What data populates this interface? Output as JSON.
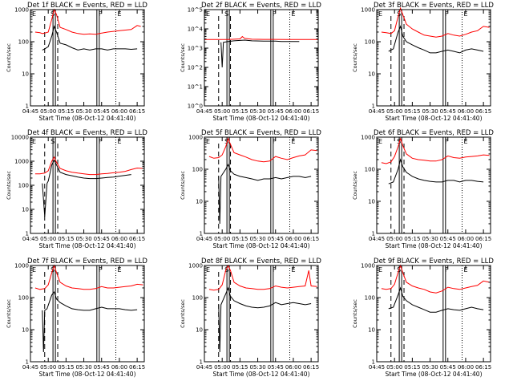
{
  "figure": {
    "background": "#ffffff",
    "events_color": "#000000",
    "lld_color": "#ff0000"
  },
  "chart_data": [
    {
      "type": "line",
      "title": "Det 1f BLACK = Events, RED = LLD",
      "xlabel": "Start Time (08-Oct-12 04:41:40)",
      "ylabel": "Counts/sec",
      "x_ticks": [
        "04:45",
        "05:00",
        "05:15",
        "05:30",
        "05:45",
        "06:00",
        "06:15"
      ],
      "y_ticks": [
        "1",
        "10",
        "100",
        "1000"
      ],
      "ylim": [
        1,
        1000
      ],
      "markers": [
        "E",
        "S",
        "F",
        "E"
      ],
      "series": [
        {
          "name": "LLD",
          "x": [
            4,
            8,
            10,
            12,
            15,
            18,
            20,
            22,
            25,
            30,
            35,
            40,
            45,
            50,
            55,
            60,
            65,
            70,
            75,
            80,
            85,
            90,
            93
          ],
          "y": [
            200,
            190,
            180,
            185,
            200,
            500,
            1000,
            700,
            280,
            240,
            200,
            180,
            170,
            175,
            170,
            185,
            200,
            210,
            220,
            230,
            240,
            320,
            300
          ]
        },
        {
          "name": "Events",
          "x": [
            10,
            12,
            15,
            18,
            20,
            22,
            25,
            30,
            35,
            40,
            45,
            50,
            55,
            60,
            65,
            70,
            75,
            80,
            85,
            90
          ],
          "y": [
            55,
            60,
            70,
            150,
            300,
            200,
            90,
            80,
            65,
            55,
            60,
            55,
            60,
            60,
            55,
            60,
            60,
            60,
            58,
            60
          ]
        }
      ]
    },
    {
      "type": "line",
      "title": "Det 2f BLACK = Events, RED = LLD",
      "xlabel": "Start Time (08-Oct-12 04:41:40)",
      "ylabel": "Counts/sec",
      "x_ticks": [
        "04:45",
        "05:00",
        "05:15",
        "05:30",
        "05:45",
        "06:00",
        "06:15"
      ],
      "y_ticks": [
        "10^0",
        "10^1",
        "10^2",
        "10^3",
        "10^4",
        "10^5"
      ],
      "ylim": [
        1,
        100000
      ],
      "markers": [
        "E",
        "S",
        "F",
        "E"
      ],
      "series": [
        {
          "name": "LLD",
          "x": [
            0,
            10,
            20,
            30,
            32,
            34,
            40,
            50,
            60,
            70,
            80,
            90,
            96
          ],
          "y": [
            2800,
            2800,
            2800,
            3000,
            4000,
            3200,
            2900,
            2850,
            2850,
            2800,
            2800,
            2800,
            2800
          ]
        },
        {
          "name": "Events",
          "x": [
            14,
            15,
            16,
            20,
            25,
            30,
            34,
            40,
            50,
            60,
            65,
            70,
            75,
            80
          ],
          "y": [
            2000,
            100,
            2000,
            2200,
            2400,
            2500,
            2600,
            2400,
            2300,
            2300,
            2200,
            2200,
            2200,
            2200
          ]
        }
      ]
    },
    {
      "type": "line",
      "title": "Det 3f BLACK = Events, RED = LLD",
      "xlabel": "Start Time (08-Oct-12 04:41:40)",
      "ylabel": "Counts/sec",
      "x_ticks": [
        "04:45",
        "05:00",
        "05:15",
        "05:30",
        "05:45",
        "06:00",
        "06:15"
      ],
      "y_ticks": [
        "1",
        "10",
        "100",
        "1000"
      ],
      "ylim": [
        1,
        1000
      ],
      "markers": [
        "E",
        "S",
        "F",
        "E"
      ],
      "series": [
        {
          "name": "LLD",
          "x": [
            4,
            8,
            12,
            15,
            18,
            20,
            22,
            25,
            30,
            35,
            40,
            45,
            50,
            55,
            60,
            65,
            70,
            75,
            80,
            85,
            90,
            95
          ],
          "y": [
            200,
            190,
            180,
            220,
            600,
            1100,
            700,
            350,
            250,
            200,
            160,
            150,
            140,
            150,
            180,
            160,
            150,
            170,
            200,
            220,
            300,
            280
          ]
        },
        {
          "name": "Events",
          "x": [
            10,
            14,
            18,
            20,
            22,
            25,
            30,
            35,
            40,
            45,
            50,
            55,
            60,
            65,
            70,
            75,
            80,
            85,
            90
          ],
          "y": [
            50,
            60,
            200,
            300,
            150,
            100,
            80,
            65,
            55,
            45,
            45,
            50,
            55,
            50,
            45,
            55,
            60,
            55,
            50
          ]
        }
      ]
    },
    {
      "type": "line",
      "title": "Det 4f BLACK = Events, RED = LLD",
      "xlabel": "Start Time (08-Oct-12 04:41:40)",
      "ylabel": "Counts/sec",
      "x_ticks": [
        "04:45",
        "05:00",
        "05:15",
        "05:30",
        "05:45",
        "06:00",
        "06:15"
      ],
      "y_ticks": [
        "1",
        "10",
        "100",
        "1000",
        "10000"
      ],
      "ylim": [
        1,
        10000
      ],
      "markers": [
        "E",
        "S",
        "F",
        "E"
      ],
      "series": [
        {
          "name": "LLD",
          "x": [
            4,
            8,
            12,
            15,
            18,
            20,
            22,
            25,
            30,
            35,
            40,
            45,
            50,
            55,
            60,
            65,
            70,
            75,
            80,
            85,
            90,
            95
          ],
          "y": [
            300,
            300,
            320,
            400,
            1000,
            1500,
            900,
            500,
            400,
            350,
            320,
            300,
            280,
            280,
            300,
            310,
            330,
            350,
            380,
            450,
            520,
            500
          ]
        },
        {
          "name": "Events",
          "x": [
            10,
            12,
            14,
            15,
            16,
            18,
            20,
            22,
            25,
            30,
            35,
            40,
            45,
            50,
            55,
            60,
            65,
            70,
            75,
            80,
            85
          ],
          "y": [
            120,
            5,
            120,
            150,
            250,
            700,
            1100,
            700,
            350,
            280,
            250,
            220,
            200,
            190,
            190,
            200,
            210,
            220,
            240,
            260,
            280
          ]
        }
      ]
    },
    {
      "type": "line",
      "title": "Det 5f BLACK = Events, RED = LLD",
      "xlabel": "Start Time (08-Oct-12 04:41:40)",
      "ylabel": "Counts/sec",
      "x_ticks": [
        "04:45",
        "05:00",
        "05:15",
        "05:30",
        "05:45",
        "06:00",
        "06:15"
      ],
      "y_ticks": [
        "1",
        "10",
        "100",
        "1000"
      ],
      "ylim": [
        1,
        1000
      ],
      "markers": [
        "E",
        "S",
        "F",
        "E"
      ],
      "series": [
        {
          "name": "LLD",
          "x": [
            4,
            8,
            12,
            15,
            18,
            20,
            22,
            25,
            30,
            35,
            40,
            45,
            50,
            55,
            60,
            65,
            70,
            75,
            80,
            85,
            90,
            95
          ],
          "y": [
            250,
            220,
            230,
            280,
            500,
            900,
            600,
            330,
            280,
            240,
            200,
            180,
            170,
            180,
            250,
            220,
            200,
            230,
            260,
            280,
            400,
            380
          ]
        },
        {
          "name": "Events",
          "x": [
            12,
            13,
            14,
            18,
            20,
            22,
            25,
            30,
            35,
            40,
            45,
            50,
            55,
            60,
            65,
            70,
            75,
            80,
            85,
            90
          ],
          "y": [
            60,
            2,
            60,
            100,
            140,
            90,
            70,
            60,
            55,
            50,
            45,
            50,
            50,
            55,
            50,
            55,
            60,
            60,
            55,
            60
          ]
        }
      ]
    },
    {
      "type": "line",
      "title": "Det 6f BLACK = Events, RED = LLD",
      "xlabel": "Start Time (08-Oct-12 04:41:40)",
      "ylabel": "Counts/sec",
      "x_ticks": [
        "04:45",
        "05:00",
        "05:15",
        "05:30",
        "05:45",
        "06:00",
        "06:15"
      ],
      "y_ticks": [
        "1",
        "10",
        "100",
        "1000"
      ],
      "ylim": [
        1,
        1000
      ],
      "markers": [
        "E",
        "S",
        "F",
        "E"
      ],
      "series": [
        {
          "name": "LLD",
          "x": [
            4,
            8,
            12,
            15,
            18,
            20,
            22,
            25,
            30,
            35,
            40,
            45,
            50,
            55,
            60,
            65,
            70,
            75,
            80,
            85,
            90,
            95
          ],
          "y": [
            160,
            150,
            170,
            250,
            500,
            900,
            550,
            300,
            220,
            200,
            190,
            180,
            180,
            200,
            260,
            230,
            220,
            240,
            250,
            260,
            280,
            270
          ]
        },
        {
          "name": "Events",
          "x": [
            10,
            14,
            18,
            20,
            22,
            25,
            30,
            35,
            40,
            45,
            50,
            55,
            60,
            65,
            70,
            75,
            80,
            85,
            90
          ],
          "y": [
            35,
            40,
            100,
            200,
            120,
            80,
            60,
            50,
            45,
            42,
            40,
            40,
            45,
            45,
            40,
            45,
            45,
            42,
            40
          ]
        }
      ]
    },
    {
      "type": "line",
      "title": "Det 7f BLACK = Events, RED = LLD",
      "xlabel": "Start Time (08-Oct-12 04:41:40)",
      "ylabel": "Counts/sec",
      "x_ticks": [
        "04:45",
        "05:00",
        "05:15",
        "05:30",
        "05:45",
        "06:00",
        "06:15"
      ],
      "y_ticks": [
        "1",
        "10",
        "100",
        "1000"
      ],
      "ylim": [
        1,
        1000
      ],
      "markers": [
        "E",
        "S",
        "F",
        "E"
      ],
      "series": [
        {
          "name": "LLD",
          "x": [
            4,
            8,
            12,
            15,
            18,
            20,
            22,
            25,
            30,
            35,
            40,
            45,
            50,
            55,
            60,
            65,
            70,
            75,
            80,
            85,
            90,
            95
          ],
          "y": [
            200,
            180,
            190,
            250,
            600,
            1000,
            600,
            300,
            230,
            200,
            190,
            180,
            180,
            190,
            220,
            200,
            200,
            210,
            220,
            230,
            260,
            250
          ]
        },
        {
          "name": "Events",
          "x": [
            10,
            11,
            12,
            14,
            18,
            20,
            22,
            25,
            30,
            35,
            40,
            45,
            50,
            55,
            60,
            65,
            70,
            75,
            80,
            85,
            90
          ],
          "y": [
            40,
            2,
            40,
            45,
            120,
            150,
            90,
            70,
            55,
            45,
            42,
            40,
            40,
            45,
            50,
            45,
            45,
            45,
            42,
            40,
            42
          ]
        }
      ]
    },
    {
      "type": "line",
      "title": "Det 8f BLACK = Events, RED = LLD",
      "xlabel": "Start Time (08-Oct-12 04:41:40)",
      "ylabel": "Counts/sec",
      "x_ticks": [
        "04:45",
        "05:00",
        "05:15",
        "05:30",
        "05:45",
        "06:00",
        "06:15"
      ],
      "y_ticks": [
        "1",
        "10",
        "100",
        "1000"
      ],
      "ylim": [
        1,
        1000
      ],
      "markers": [
        "E",
        "S",
        "F",
        "E"
      ],
      "series": [
        {
          "name": "LLD",
          "x": [
            4,
            8,
            12,
            15,
            18,
            20,
            22,
            25,
            30,
            35,
            40,
            45,
            50,
            55,
            60,
            65,
            70,
            75,
            80,
            85,
            88,
            90,
            95
          ],
          "y": [
            180,
            170,
            180,
            250,
            700,
            1000,
            700,
            300,
            230,
            200,
            190,
            180,
            180,
            190,
            230,
            210,
            200,
            210,
            220,
            230,
            700,
            230,
            220
          ]
        },
        {
          "name": "Events",
          "x": [
            12,
            13,
            14,
            18,
            20,
            22,
            25,
            30,
            35,
            40,
            45,
            50,
            55,
            60,
            65,
            70,
            75,
            80,
            85,
            90
          ],
          "y": [
            60,
            2,
            60,
            130,
            200,
            110,
            80,
            65,
            55,
            50,
            48,
            50,
            55,
            70,
            60,
            65,
            70,
            65,
            60,
            65
          ]
        }
      ]
    },
    {
      "type": "line",
      "title": "Det 9f BLACK = Events, RED = LLD",
      "xlabel": "Start Time (08-Oct-12 04:41:40)",
      "ylabel": "Counts/sec",
      "x_ticks": [
        "04:45",
        "05:00",
        "05:15",
        "05:30",
        "05:45",
        "06:00",
        "06:15"
      ],
      "y_ticks": [
        "1",
        "10",
        "100",
        "1000"
      ],
      "ylim": [
        1,
        1000
      ],
      "markers": [
        "E",
        "S",
        "F",
        "E"
      ],
      "series": [
        {
          "name": "LLD",
          "x": [
            4,
            8,
            12,
            15,
            18,
            20,
            22,
            25,
            30,
            35,
            40,
            45,
            50,
            55,
            60,
            65,
            70,
            75,
            80,
            85,
            90,
            95
          ],
          "y": [
            190,
            180,
            190,
            260,
            600,
            1000,
            600,
            300,
            230,
            200,
            180,
            150,
            140,
            160,
            210,
            190,
            180,
            200,
            220,
            240,
            330,
            300
          ]
        },
        {
          "name": "Events",
          "x": [
            10,
            14,
            18,
            20,
            22,
            25,
            30,
            35,
            40,
            45,
            50,
            55,
            60,
            65,
            70,
            75,
            80,
            85,
            90
          ],
          "y": [
            45,
            50,
            120,
            200,
            110,
            80,
            60,
            50,
            42,
            35,
            35,
            40,
            45,
            42,
            40,
            45,
            50,
            45,
            42
          ]
        }
      ]
    }
  ]
}
